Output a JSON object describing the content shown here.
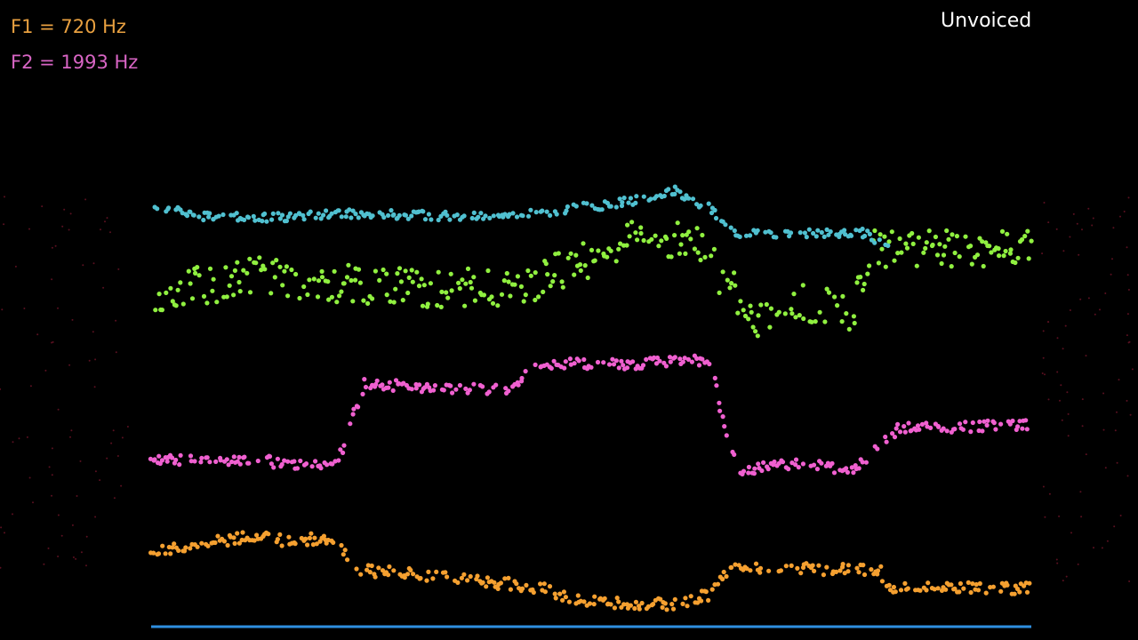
{
  "f1_readout": "F1 = 720 Hz",
  "f2_readout": "F2 = 1993 Hz",
  "status": "Unvoiced"
}
